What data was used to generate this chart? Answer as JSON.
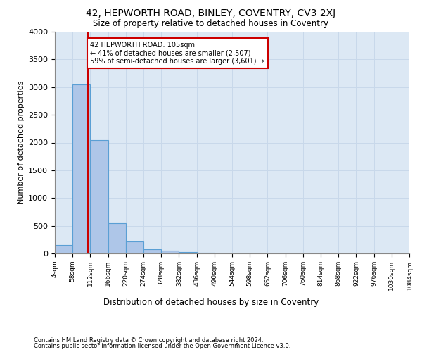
{
  "title1": "42, HEPWORTH ROAD, BINLEY, COVENTRY, CV3 2XJ",
  "title2": "Size of property relative to detached houses in Coventry",
  "xlabel": "Distribution of detached houses by size in Coventry",
  "ylabel": "Number of detached properties",
  "footnote1": "Contains HM Land Registry data © Crown copyright and database right 2024.",
  "footnote2": "Contains public sector information licensed under the Open Government Licence v3.0.",
  "bin_edges": [
    4,
    58,
    112,
    166,
    220,
    274,
    328,
    382,
    436,
    490,
    544,
    598,
    652,
    706,
    760,
    814,
    868,
    922,
    976,
    1030,
    1084
  ],
  "bar_heights": [
    150,
    3050,
    2050,
    550,
    220,
    80,
    50,
    30,
    10,
    5,
    2,
    1,
    0.5,
    0.3,
    0.2,
    0.1,
    0.1,
    0.05,
    0.05,
    0.02
  ],
  "bar_color": "#aec6e8",
  "bar_edge_color": "#5a9fd4",
  "vline_x": 105,
  "vline_color": "#cc0000",
  "annotation_title": "42 HEPWORTH ROAD: 105sqm",
  "annotation_line1": "← 41% of detached houses are smaller (2,507)",
  "annotation_line2": "59% of semi-detached houses are larger (3,601) →",
  "annotation_box_color": "#ffffff",
  "annotation_box_edge": "#cc0000",
  "ylim": [
    0,
    4000
  ],
  "xlim": [
    4,
    1084
  ],
  "yticks": [
    0,
    500,
    1000,
    1500,
    2000,
    2500,
    3000,
    3500,
    4000
  ],
  "xtick_labels": [
    "4sqm",
    "58sqm",
    "112sqm",
    "166sqm",
    "220sqm",
    "274sqm",
    "328sqm",
    "382sqm",
    "436sqm",
    "490sqm",
    "544sqm",
    "598sqm",
    "652sqm",
    "706sqm",
    "760sqm",
    "814sqm",
    "868sqm",
    "922sqm",
    "976sqm",
    "1030sqm",
    "1084sqm"
  ],
  "grid_color": "#c8d8ea",
  "background_color": "#dce8f4",
  "fig_background": "#ffffff"
}
